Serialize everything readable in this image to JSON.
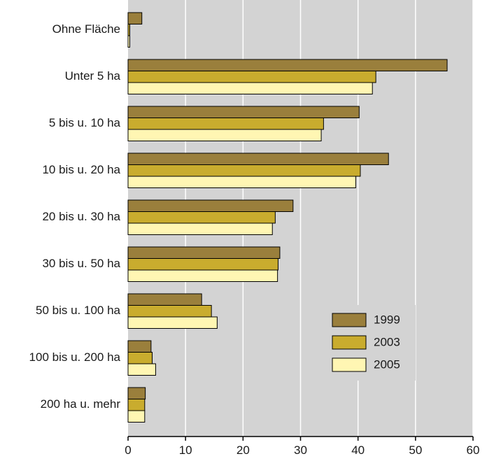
{
  "chart_data": {
    "type": "bar",
    "orientation": "horizontal",
    "categories": [
      "Ohne Fläche",
      "Unter 5 ha",
      "5 bis u. 10 ha",
      "10 bis u. 20 ha",
      "20 bis u. 30 ha",
      "30 bis u. 50 ha",
      "50 bis u. 100 ha",
      "100 bis u. 200 ha",
      "200 ha u. mehr"
    ],
    "series": [
      {
        "name": "1999",
        "color": "#9a7f3c",
        "values": [
          2.4,
          55.5,
          40.2,
          45.3,
          28.7,
          26.4,
          12.8,
          4.0,
          3.0
        ]
      },
      {
        "name": "2003",
        "color": "#c9ac2e",
        "values": [
          0.3,
          43.1,
          34.0,
          40.4,
          25.6,
          26.1,
          14.5,
          4.2,
          2.9
        ]
      },
      {
        "name": "2005",
        "color": "#fff6b3",
        "values": [
          0.3,
          42.5,
          33.6,
          39.6,
          25.1,
          26.0,
          15.5,
          4.8,
          2.9
        ]
      }
    ],
    "xlim": [
      0,
      60
    ],
    "xticks": [
      "0",
      "10",
      "20",
      "30",
      "40",
      "50",
      "60"
    ],
    "grid": true,
    "legend_position": "right-lower",
    "plot_background": "#d3d3d3",
    "grid_color": "#ffffff",
    "bar_outline": "#000000"
  }
}
